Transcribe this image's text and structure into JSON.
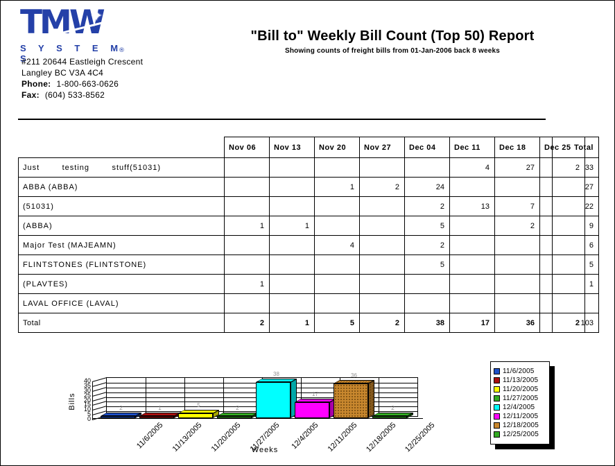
{
  "page": {
    "logo": {
      "text": "TMW",
      "sub": "S Y S T E M S",
      "registered": "®"
    },
    "address": {
      "line1": "#211 20644 Eastleigh Crescent",
      "line2": "Langley  BC   V3A 4C4",
      "phone_label": "Phone:",
      "phone": "1-800-663-0626",
      "fax_label": "Fax:",
      "fax": "(604) 533-8562"
    },
    "title": "\"Bill to\" Weekly Bill Count (Top 50) Report",
    "subtitle": "Showing counts of freight bills from 01-Jan-2006 back 8 weeks"
  },
  "table": {
    "week_headers": [
      "Nov 06",
      "Nov 13",
      "Nov 20",
      "Nov 27",
      "Dec 04",
      "Dec 11",
      "Dec 18",
      "Dec 25"
    ],
    "total_header": "Total",
    "rows": [
      {
        "label": "Just        testing        stuff(51031)",
        "values": [
          "",
          "",
          "",
          "",
          "",
          "4",
          "27",
          "2"
        ],
        "total": "33"
      },
      {
        "label": "ABBA (ABBA)",
        "values": [
          "",
          "",
          "1",
          "2",
          "24",
          "",
          "",
          ""
        ],
        "total": "27"
      },
      {
        "label": "(51031)",
        "values": [
          "",
          "",
          "",
          "",
          "2",
          "13",
          "7",
          ""
        ],
        "total": "22"
      },
      {
        "label": "(ABBA)",
        "values": [
          "1",
          "1",
          "",
          "",
          "5",
          "",
          "2",
          ""
        ],
        "total": "9"
      },
      {
        "label": "Major Test (MAJEAMN)",
        "values": [
          "",
          "",
          "4",
          "",
          "2",
          "",
          "",
          ""
        ],
        "total": "6"
      },
      {
        "label": "FLINTSTONES (FLINTSTONE)",
        "values": [
          "",
          "",
          "",
          "",
          "5",
          "",
          "",
          ""
        ],
        "total": "5"
      },
      {
        "label": "(PLAVTES)",
        "values": [
          "1",
          "",
          "",
          "",
          "",
          "",
          "",
          ""
        ],
        "total": "1"
      },
      {
        "label": "LAVAL OFFICE (LAVAL)",
        "values": [
          "",
          "",
          "",
          "",
          "",
          "",
          "",
          ""
        ],
        "total": ""
      }
    ],
    "total_row": {
      "label": "Total",
      "values": [
        "2",
        "1",
        "5",
        "2",
        "38",
        "17",
        "36",
        "2"
      ],
      "total": "103"
    }
  },
  "chart_data": {
    "type": "bar",
    "title": "",
    "xlabel": "Weeks",
    "ylabel": "Bills",
    "ylim": [
      0,
      40
    ],
    "yticks": [
      0,
      5,
      10,
      15,
      20,
      25,
      30,
      35,
      40
    ],
    "grid": true,
    "legend_position": "right",
    "categories": [
      "11/6/2005",
      "11/13/2005",
      "11/20/2005",
      "11/27/2005",
      "12/4/2005",
      "12/11/2005",
      "12/18/2005",
      "12/25/2005"
    ],
    "values": [
      2,
      1,
      5,
      2,
      38,
      17,
      36,
      2
    ],
    "colors": [
      "#1E50C8",
      "#AA0F0F",
      "#FFFF00",
      "#33AA22",
      "#00FFFF",
      "#FF00FF",
      "#C8872E",
      "#33AA22"
    ],
    "patterns": [
      "solid",
      "solid",
      "solid",
      "solid",
      "solid",
      "solid",
      "dots",
      "solid"
    ]
  }
}
